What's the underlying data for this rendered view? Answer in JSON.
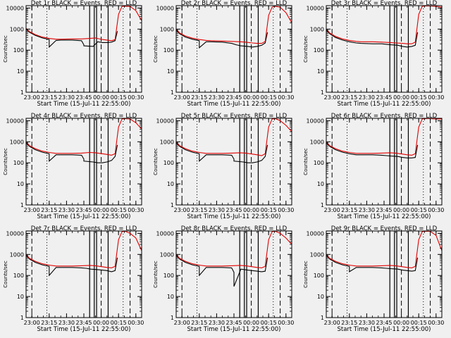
{
  "figure": {
    "background": "#f0f0f0",
    "events_color": "#000000",
    "lld_color": "#e00000"
  },
  "chart_data": [
    {
      "type": "line",
      "title": "Det 1r BLACK = Events, RED = LLD",
      "xlabel": "Start Time (15-Jul-11 22:55:00)",
      "ylabel": "Counts/sec",
      "x_ticks": [
        "23:00",
        "23:15",
        "23:30",
        "23:45",
        "00:00",
        "00:15",
        "00:30"
      ],
      "y_ticks": [
        "1",
        "10",
        "100",
        "1000",
        "10000"
      ],
      "xlim_minutes": [
        0,
        100
      ],
      "ylim": [
        1,
        13000
      ],
      "y_scale": "log",
      "series": [
        {
          "name": "Events",
          "x": [
            0,
            3,
            8,
            14,
            20,
            20,
            26,
            30,
            40,
            48,
            50,
            50,
            58,
            62,
            66,
            70,
            74,
            77,
            79
          ],
          "y": [
            1000,
            700,
            500,
            380,
            320,
            140,
            290,
            300,
            300,
            280,
            180,
            160,
            150,
            250,
            230,
            230,
            240,
            280,
            800
          ]
        },
        {
          "name": "LLD",
          "x": [
            0,
            3,
            8,
            14,
            20,
            26,
            30,
            40,
            48,
            55,
            60,
            66,
            70,
            74,
            77,
            80,
            83,
            86,
            90,
            95,
            100
          ],
          "y": [
            1100,
            750,
            550,
            420,
            360,
            330,
            330,
            340,
            340,
            360,
            380,
            320,
            300,
            280,
            320,
            5000,
            12000,
            12000,
            12000,
            7500,
            2500
          ]
        }
      ]
    },
    {
      "type": "line",
      "title": "Det 2r BLACK = Events, RED = LLD",
      "xlabel": "Start Time (15-Jul-11 22:55:00)",
      "ylabel": "Counts/sec",
      "x_ticks": [
        "23:00",
        "23:15",
        "23:30",
        "23:45",
        "00:00",
        "00:15",
        "00:30"
      ],
      "y_ticks": [
        "1",
        "10",
        "100",
        "1000",
        "10000"
      ],
      "xlim_minutes": [
        0,
        100
      ],
      "ylim": [
        1,
        13000
      ],
      "y_scale": "log",
      "series": [
        {
          "name": "Events",
          "x": [
            0,
            3,
            8,
            14,
            20,
            20,
            26,
            30,
            40,
            48,
            52,
            56,
            62,
            66,
            70,
            74,
            77,
            79
          ],
          "y": [
            900,
            600,
            420,
            330,
            280,
            130,
            250,
            250,
            240,
            210,
            180,
            160,
            150,
            140,
            150,
            170,
            220,
            700
          ]
        },
        {
          "name": "LLD",
          "x": [
            0,
            3,
            8,
            14,
            20,
            26,
            30,
            40,
            48,
            55,
            60,
            66,
            70,
            74,
            77,
            80,
            83,
            86,
            90,
            95,
            100
          ],
          "y": [
            1000,
            650,
            470,
            370,
            320,
            290,
            280,
            270,
            260,
            250,
            240,
            220,
            210,
            210,
            260,
            4500,
            11000,
            12000,
            11000,
            6000,
            2000
          ]
        }
      ]
    },
    {
      "type": "line",
      "title": "Det 3r BLACK = Events, RED = LLD",
      "xlabel": "Start Time (15-Jul-11 22:55:00)",
      "ylabel": "Counts/sec",
      "x_ticks": [
        "23:00",
        "23:15",
        "23:30",
        "23:45",
        "00:00",
        "00:15",
        "00:30"
      ],
      "y_ticks": [
        "1",
        "10",
        "100",
        "1000",
        "10000"
      ],
      "xlim_minutes": [
        0,
        100
      ],
      "ylim": [
        1,
        13000
      ],
      "y_scale": "log",
      "series": [
        {
          "name": "Events",
          "x": [
            0,
            3,
            8,
            14,
            20,
            26,
            30,
            40,
            48,
            52,
            56,
            62,
            66,
            70,
            74,
            77,
            79
          ],
          "y": [
            900,
            600,
            400,
            300,
            250,
            220,
            210,
            200,
            200,
            190,
            180,
            170,
            150,
            140,
            150,
            170,
            700
          ]
        },
        {
          "name": "LLD",
          "x": [
            0,
            3,
            8,
            14,
            20,
            26,
            30,
            40,
            48,
            55,
            60,
            66,
            70,
            74,
            77,
            80,
            83,
            86,
            90,
            95,
            100
          ],
          "y": [
            1000,
            650,
            450,
            340,
            290,
            260,
            250,
            250,
            240,
            230,
            220,
            210,
            200,
            200,
            240,
            5000,
            12000,
            12500,
            12500,
            12000,
            11000
          ]
        }
      ]
    },
    {
      "type": "line",
      "title": "Det 4r BLACK = Events, RED = LLD",
      "xlabel": "Start Time (15-Jul-11 22:55:00)",
      "ylabel": "Counts/sec",
      "x_ticks": [
        "23:00",
        "23:15",
        "23:30",
        "23:45",
        "00:00",
        "00:15",
        "00:30"
      ],
      "y_ticks": [
        "1",
        "10",
        "100",
        "1000",
        "10000"
      ],
      "xlim_minutes": [
        0,
        100
      ],
      "ylim": [
        1,
        13000
      ],
      "y_scale": "log",
      "series": [
        {
          "name": "Events",
          "x": [
            0,
            3,
            8,
            14,
            20,
            20,
            26,
            30,
            40,
            48,
            50,
            50,
            58,
            62,
            66,
            70,
            74,
            77,
            79
          ],
          "y": [
            900,
            600,
            420,
            320,
            270,
            120,
            240,
            240,
            240,
            230,
            150,
            120,
            110,
            100,
            100,
            110,
            130,
            200,
            700
          ]
        },
        {
          "name": "LLD",
          "x": [
            0,
            3,
            8,
            14,
            20,
            26,
            30,
            40,
            48,
            55,
            60,
            66,
            70,
            74,
            77,
            80,
            83,
            86,
            90,
            95,
            100
          ],
          "y": [
            1000,
            650,
            470,
            360,
            310,
            280,
            280,
            280,
            290,
            310,
            300,
            270,
            250,
            230,
            270,
            5000,
            12000,
            12500,
            12000,
            8000,
            4000
          ]
        }
      ]
    },
    {
      "type": "line",
      "title": "Det 5r BLACK = Events, RED = LLD",
      "xlabel": "Start Time (15-Jul-11 22:55:00)",
      "ylabel": "Counts/sec",
      "x_ticks": [
        "23:00",
        "23:15",
        "23:30",
        "23:45",
        "00:00",
        "00:15",
        "00:30"
      ],
      "y_ticks": [
        "1",
        "10",
        "100",
        "1000",
        "10000"
      ],
      "xlim_minutes": [
        0,
        100
      ],
      "ylim": [
        1,
        13000
      ],
      "y_scale": "log",
      "series": [
        {
          "name": "Events",
          "x": [
            0,
            3,
            8,
            14,
            20,
            20,
            26,
            30,
            40,
            48,
            50,
            50,
            58,
            62,
            66,
            70,
            74,
            77,
            79
          ],
          "y": [
            900,
            600,
            420,
            320,
            270,
            120,
            240,
            240,
            240,
            230,
            150,
            120,
            110,
            100,
            100,
            110,
            130,
            200,
            700
          ]
        },
        {
          "name": "LLD",
          "x": [
            0,
            3,
            8,
            14,
            20,
            26,
            30,
            40,
            48,
            55,
            60,
            66,
            70,
            74,
            77,
            80,
            83,
            86,
            90,
            95,
            100
          ],
          "y": [
            1000,
            650,
            470,
            360,
            310,
            280,
            280,
            280,
            290,
            300,
            290,
            260,
            240,
            220,
            270,
            5000,
            12000,
            12500,
            10000,
            6000,
            3000
          ]
        }
      ]
    },
    {
      "type": "line",
      "title": "Det 6r BLACK = Events, RED = LLD",
      "xlabel": "Start Time (15-Jul-11 22:55:00)",
      "ylabel": "Counts/sec",
      "x_ticks": [
        "23:00",
        "23:15",
        "23:30",
        "23:45",
        "00:00",
        "00:15",
        "00:30"
      ],
      "y_ticks": [
        "1",
        "10",
        "100",
        "1000",
        "10000"
      ],
      "xlim_minutes": [
        0,
        100
      ],
      "ylim": [
        1,
        13000
      ],
      "y_scale": "log",
      "series": [
        {
          "name": "Events",
          "x": [
            0,
            3,
            8,
            14,
            20,
            26,
            30,
            40,
            48,
            52,
            56,
            62,
            66,
            70,
            74,
            77,
            79
          ],
          "y": [
            900,
            600,
            420,
            320,
            270,
            240,
            240,
            240,
            230,
            220,
            210,
            200,
            180,
            170,
            170,
            180,
            700
          ]
        },
        {
          "name": "LLD",
          "x": [
            0,
            3,
            8,
            14,
            20,
            26,
            30,
            40,
            48,
            55,
            60,
            66,
            70,
            74,
            77,
            80,
            83,
            86,
            90,
            95,
            100
          ],
          "y": [
            1000,
            650,
            470,
            360,
            310,
            280,
            280,
            280,
            290,
            300,
            290,
            260,
            240,
            230,
            270,
            5000,
            12000,
            12500,
            12500,
            12000,
            12000
          ]
        }
      ]
    },
    {
      "type": "line",
      "title": "Det 7r BLACK = Events, RED = LLD",
      "xlabel": "Start Time (15-Jul-11 22:55:00)",
      "ylabel": "Counts/sec",
      "x_ticks": [
        "23:00",
        "23:15",
        "23:30",
        "23:45",
        "00:00",
        "00:15",
        "00:30"
      ],
      "y_ticks": [
        "1",
        "10",
        "100",
        "1000",
        "10000"
      ],
      "xlim_minutes": [
        0,
        100
      ],
      "ylim": [
        1,
        13000
      ],
      "y_scale": "log",
      "series": [
        {
          "name": "Events",
          "x": [
            0,
            3,
            8,
            14,
            20,
            20,
            26,
            30,
            40,
            48,
            52,
            56,
            62,
            66,
            70,
            74,
            77,
            79
          ],
          "y": [
            900,
            600,
            420,
            320,
            270,
            100,
            240,
            240,
            240,
            230,
            220,
            200,
            190,
            180,
            170,
            150,
            170,
            700
          ]
        },
        {
          "name": "LLD",
          "x": [
            0,
            3,
            8,
            14,
            20,
            26,
            30,
            40,
            48,
            55,
            60,
            66,
            70,
            74,
            77,
            80,
            83,
            86,
            90,
            95,
            100
          ],
          "y": [
            1000,
            650,
            470,
            360,
            310,
            280,
            280,
            280,
            290,
            300,
            290,
            260,
            240,
            230,
            270,
            5000,
            12000,
            12500,
            10000,
            6000,
            1500
          ]
        }
      ]
    },
    {
      "type": "line",
      "title": "Det 8r BLACK = Events, RED = LLD",
      "xlabel": "Start Time (15-Jul-11 22:55:00)",
      "ylabel": "Counts/sec",
      "x_ticks": [
        "23:00",
        "23:15",
        "23:30",
        "23:45",
        "00:00",
        "00:15",
        "00:30"
      ],
      "y_ticks": [
        "1",
        "10",
        "100",
        "1000",
        "10000"
      ],
      "xlim_minutes": [
        0,
        100
      ],
      "ylim": [
        1,
        13000
      ],
      "y_scale": "log",
      "series": [
        {
          "name": "Events",
          "x": [
            0,
            3,
            8,
            14,
            20,
            20,
            26,
            30,
            40,
            48,
            50,
            50,
            56,
            62,
            66,
            70,
            74,
            77,
            79
          ],
          "y": [
            900,
            600,
            420,
            320,
            270,
            100,
            240,
            240,
            240,
            230,
            140,
            30,
            200,
            180,
            170,
            160,
            150,
            160,
            700
          ]
        },
        {
          "name": "LLD",
          "x": [
            0,
            3,
            8,
            14,
            20,
            26,
            30,
            40,
            48,
            55,
            60,
            66,
            70,
            74,
            77,
            80,
            83,
            86,
            90,
            95,
            100
          ],
          "y": [
            1000,
            650,
            470,
            360,
            310,
            280,
            280,
            280,
            290,
            300,
            290,
            260,
            240,
            230,
            270,
            5000,
            12000,
            12500,
            10000,
            6000,
            3000
          ]
        }
      ]
    },
    {
      "type": "line",
      "title": "Det 9r BLACK = Events, RED = LLD",
      "xlabel": "Start Time (15-Jul-11 22:55:00)",
      "ylabel": "Counts/sec",
      "x_ticks": [
        "23:00",
        "23:15",
        "23:30",
        "23:45",
        "00:00",
        "00:15",
        "00:30"
      ],
      "y_ticks": [
        "1",
        "10",
        "100",
        "1000",
        "10000"
      ],
      "xlim_minutes": [
        0,
        100
      ],
      "ylim": [
        1,
        13000
      ],
      "y_scale": "log",
      "series": [
        {
          "name": "Events",
          "x": [
            0,
            3,
            8,
            14,
            20,
            20,
            26,
            30,
            40,
            48,
            52,
            56,
            62,
            66,
            70,
            74,
            77,
            79
          ],
          "y": [
            900,
            600,
            420,
            320,
            270,
            150,
            240,
            240,
            240,
            230,
            220,
            210,
            200,
            180,
            170,
            160,
            170,
            700
          ]
        },
        {
          "name": "LLD",
          "x": [
            0,
            3,
            8,
            14,
            20,
            26,
            30,
            40,
            48,
            55,
            60,
            66,
            70,
            74,
            77,
            80,
            83,
            86,
            90,
            95,
            100
          ],
          "y": [
            1000,
            650,
            470,
            360,
            310,
            280,
            280,
            280,
            290,
            300,
            290,
            260,
            240,
            230,
            270,
            5000,
            12000,
            12500,
            12500,
            8000,
            1500
          ]
        }
      ]
    }
  ]
}
